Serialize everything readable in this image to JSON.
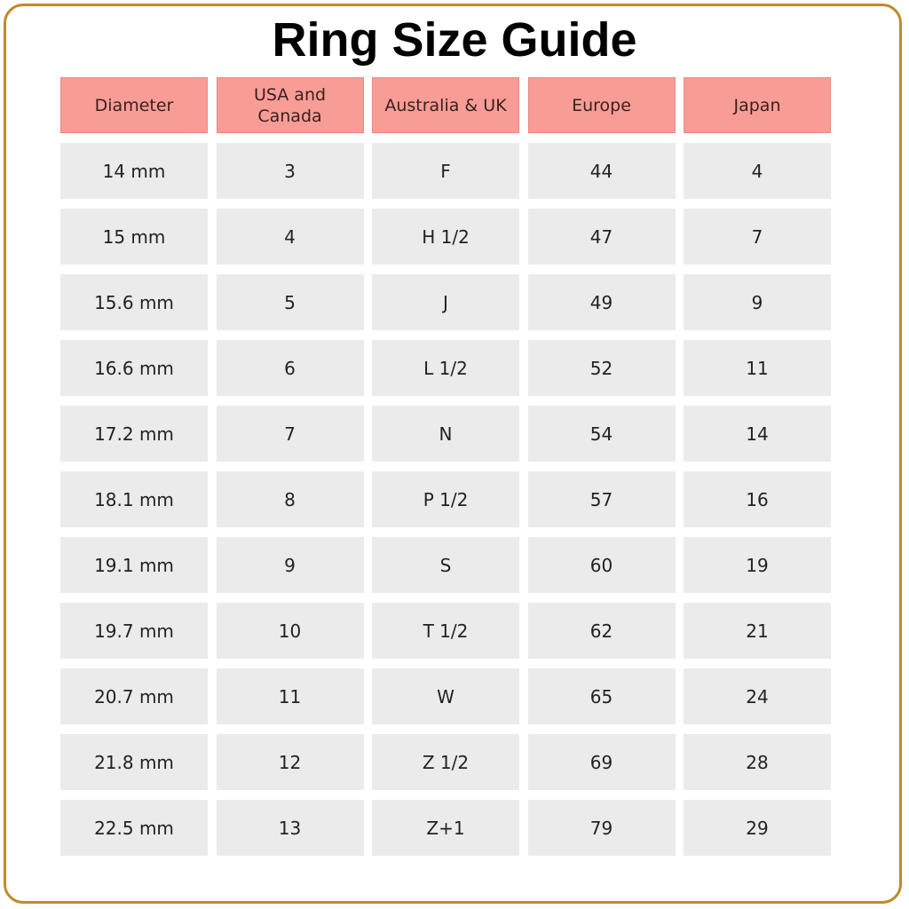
{
  "title": "Ring Size Guide",
  "colors": {
    "header": "#f89d96",
    "cell": "#ebebeb",
    "border": "#c08a2a"
  },
  "headers": [
    "Diameter",
    "USA and Canada",
    "Australia & UK",
    "Europe",
    "Japan"
  ],
  "rows": [
    [
      "14 mm",
      "3",
      "F",
      "44",
      "4"
    ],
    [
      "15 mm",
      "4",
      "H 1/2",
      "47",
      "7"
    ],
    [
      "15.6 mm",
      "5",
      "J",
      "49",
      "9"
    ],
    [
      "16.6 mm",
      "6",
      "L 1/2",
      "52",
      "11"
    ],
    [
      "17.2 mm",
      "7",
      "N",
      "54",
      "14"
    ],
    [
      "18.1 mm",
      "8",
      "P 1/2",
      "57",
      "16"
    ],
    [
      "19.1 mm",
      "9",
      "S",
      "60",
      "19"
    ],
    [
      "19.7 mm",
      "10",
      "T 1/2",
      "62",
      "21"
    ],
    [
      "20.7 mm",
      "11",
      "W",
      "65",
      "24"
    ],
    [
      "21.8 mm",
      "12",
      "Z 1/2",
      "69",
      "28"
    ],
    [
      "22.5 mm",
      "13",
      "Z+1",
      "79",
      "29"
    ]
  ]
}
